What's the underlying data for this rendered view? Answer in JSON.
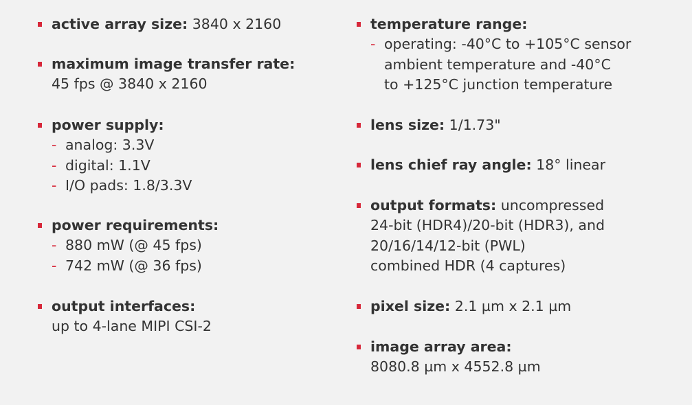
{
  "colors": {
    "background": "#f2f2f2",
    "text": "#333333",
    "accent": "#d7283a"
  },
  "left_column": {
    "active_array_size": {
      "label": "active array size:",
      "value": "3840 x 2160"
    },
    "max_transfer_rate": {
      "label": "maximum image transfer rate:",
      "value": "45 fps @ 3840 x 2160"
    },
    "power_supply": {
      "label": "power supply:",
      "items": [
        "analog: 3.3V",
        "digital: 1.1V",
        "I/O pads: 1.8/3.3V"
      ]
    },
    "power_requirements": {
      "label": "power requirements:",
      "items": [
        "880 mW (@ 45 fps)",
        "742 mW (@ 36 fps)"
      ]
    },
    "output_interfaces": {
      "label": "output interfaces:",
      "value": "up to 4-lane MIPI CSI-2"
    }
  },
  "right_column": {
    "temperature_range": {
      "label": "temperature range:",
      "lines": [
        "operating: -40°C to +105°C sensor",
        "ambient temperature and -40°C",
        "to +125°C junction temperature"
      ]
    },
    "lens_size": {
      "label": "lens size:",
      "value": "1/1.73\""
    },
    "lens_cra": {
      "label": "lens chief ray angle:",
      "value": "18° linear"
    },
    "output_formats": {
      "label": "output formats:",
      "value": "uncompressed",
      "lines": [
        "24-bit (HDR4)/20-bit (HDR3), and",
        "20/16/14/12-bit (PWL)",
        "combined HDR (4 captures)"
      ]
    },
    "pixel_size": {
      "label": "pixel size:",
      "value": "2.1 µm x 2.1 µm"
    },
    "image_array_area": {
      "label": "image array area:",
      "value": "8080.8 µm x 4552.8 µm"
    }
  }
}
